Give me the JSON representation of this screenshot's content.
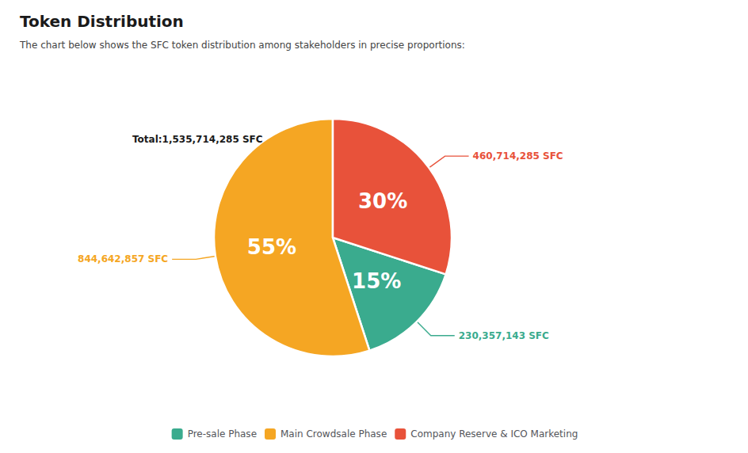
{
  "chart_data": {
    "type": "pie",
    "title": "Token Distribution",
    "subtitle": "The chart below shows the SFC token distribution among stakeholders in precise proportions:",
    "categories": [
      "Pre-sale Phase",
      "Main Crowdsale Phase",
      "Company Reserve & ICO Marketing"
    ],
    "values": [
      15,
      55,
      30
    ],
    "value_labels": [
      "15%",
      "55%",
      "30%"
    ],
    "data_labels": true,
    "colors": [
      "#3aab8e",
      "#f5a623",
      "#e8523a"
    ],
    "annotations": [
      {
        "text": "Total:1,535,714,285 SFC"
      },
      {
        "text": "230,357,143 SFC",
        "category": "Pre-sale Phase"
      },
      {
        "text": "844,642,857 SFC",
        "category": "Main Crowdsale Phase"
      },
      {
        "text": "460,714,285 SFC",
        "category": "Company Reserve & ICO Marketing"
      }
    ],
    "legend": "bottom"
  }
}
